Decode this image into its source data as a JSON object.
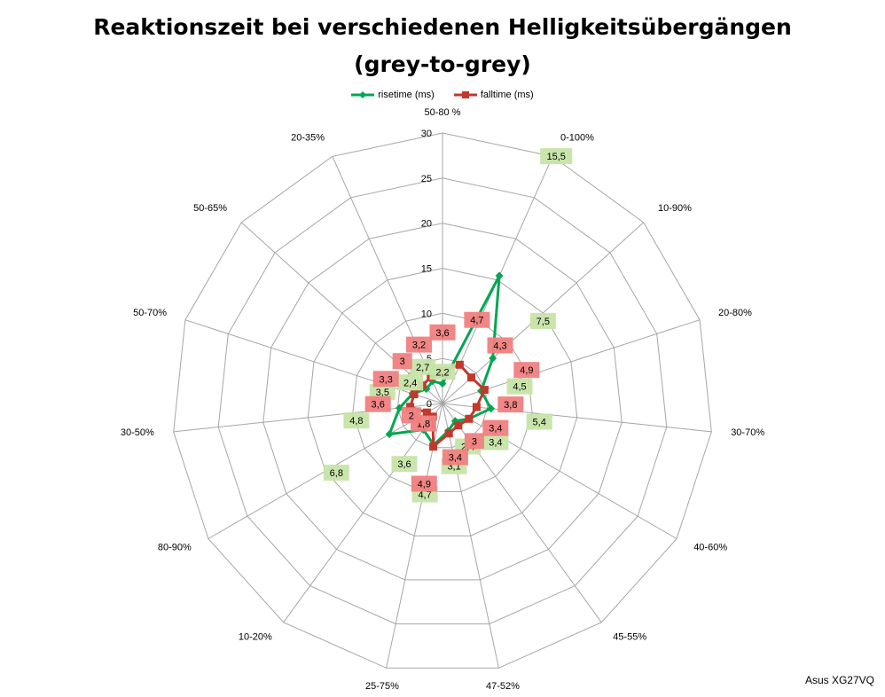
{
  "title_line1": "Reaktionszeit bei verschiedenen Helligkeitsübergängen",
  "title_line2": "(grey-to-grey)",
  "credit": "Asus XG27VQ",
  "colors": {
    "rise": "#00a650",
    "fall": "#c0392b",
    "rise_label_bg": "#c6e4a8",
    "fall_label_bg": "#f08080",
    "grid": "#a6a6a6"
  },
  "chart_data": {
    "type": "radar",
    "categories": [
      "50-80 %",
      "0-100%",
      "10-90%",
      "20-80%",
      "30-70%",
      "40-60%",
      "45-55%",
      "47-52%",
      "25-75%",
      "10-20%",
      "80-90%",
      "30-50%",
      "50-70%",
      "50-65%",
      "20-35%"
    ],
    "series": [
      {
        "name": "risetime (ms)",
        "values": [
          2.2,
          15.5,
          7.5,
          4.5,
          5.4,
          3.4,
          2.4,
          3.1,
          4.7,
          3.6,
          6.8,
          4.8,
          3.5,
          2.4,
          2.7
        ]
      },
      {
        "name": "falltime (ms)",
        "values": [
          3.6,
          4.7,
          4.3,
          4.9,
          3.8,
          3.4,
          3,
          3.4,
          4.9,
          1.8,
          2,
          3.6,
          3.3,
          3,
          3.2
        ]
      }
    ],
    "ticks": [
      "0",
      "5",
      "10",
      "15",
      "20",
      "25",
      "30"
    ],
    "rmax": 30,
    "legend_position": "top"
  }
}
